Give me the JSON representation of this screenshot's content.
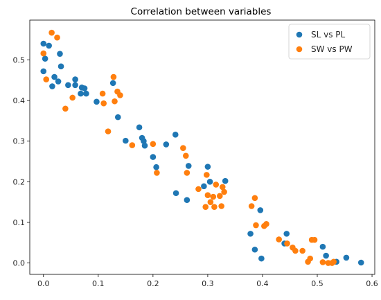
{
  "chart_data": {
    "type": "scatter",
    "title": "Correlation between variables",
    "xlabel": "",
    "ylabel": "",
    "xlim": [
      -0.025,
      0.605
    ],
    "ylim": [
      -0.028,
      0.598
    ],
    "x_ticks": [
      0.0,
      0.1,
      0.2,
      0.3,
      0.4,
      0.5,
      0.6
    ],
    "x_tick_labels": [
      "0.0",
      "0.1",
      "0.2",
      "0.3",
      "0.4",
      "0.5",
      "0.6"
    ],
    "y_ticks": [
      0.0,
      0.1,
      0.2,
      0.3,
      0.4,
      0.5
    ],
    "y_tick_labels": [
      "0.0",
      "0.1",
      "0.2",
      "0.3",
      "0.4",
      "0.5"
    ],
    "grid": false,
    "legend_position": "top-right",
    "series": [
      {
        "name": "SL vs PL",
        "color": "#1f77b4",
        "points": [
          [
            0.0,
            0.54
          ],
          [
            0.003,
            0.503
          ],
          [
            0.0,
            0.472
          ],
          [
            0.01,
            0.535
          ],
          [
            0.03,
            0.515
          ],
          [
            0.032,
            0.484
          ],
          [
            0.02,
            0.458
          ],
          [
            0.016,
            0.435
          ],
          [
            0.027,
            0.447
          ],
          [
            0.045,
            0.438
          ],
          [
            0.058,
            0.452
          ],
          [
            0.058,
            0.438
          ],
          [
            0.07,
            0.432
          ],
          [
            0.075,
            0.43
          ],
          [
            0.068,
            0.417
          ],
          [
            0.078,
            0.417
          ],
          [
            0.097,
            0.397
          ],
          [
            0.127,
            0.443
          ],
          [
            0.136,
            0.359
          ],
          [
            0.15,
            0.301
          ],
          [
            0.175,
            0.334
          ],
          [
            0.18,
            0.308
          ],
          [
            0.183,
            0.3
          ],
          [
            0.185,
            0.289
          ],
          [
            0.2,
            0.261
          ],
          [
            0.206,
            0.236
          ],
          [
            0.224,
            0.292
          ],
          [
            0.241,
            0.316
          ],
          [
            0.265,
            0.239
          ],
          [
            0.242,
            0.172
          ],
          [
            0.262,
            0.155
          ],
          [
            0.293,
            0.189
          ],
          [
            0.3,
            0.237
          ],
          [
            0.304,
            0.2
          ],
          [
            0.332,
            0.202
          ],
          [
            0.378,
            0.072
          ],
          [
            0.386,
            0.033
          ],
          [
            0.396,
            0.13
          ],
          [
            0.398,
            0.011
          ],
          [
            0.44,
            0.048
          ],
          [
            0.444,
            0.072
          ],
          [
            0.51,
            0.04
          ],
          [
            0.516,
            0.018
          ],
          [
            0.535,
            0.003
          ],
          [
            0.553,
            0.013
          ],
          [
            0.58,
            0.001
          ]
        ]
      },
      {
        "name": "SW vs PW",
        "color": "#ff7f0e",
        "points": [
          [
            0.0,
            0.516
          ],
          [
            0.005,
            0.452
          ],
          [
            0.015,
            0.567
          ],
          [
            0.025,
            0.555
          ],
          [
            0.04,
            0.38
          ],
          [
            0.053,
            0.407
          ],
          [
            0.108,
            0.417
          ],
          [
            0.11,
            0.393
          ],
          [
            0.118,
            0.324
          ],
          [
            0.128,
            0.458
          ],
          [
            0.13,
            0.398
          ],
          [
            0.135,
            0.422
          ],
          [
            0.14,
            0.413
          ],
          [
            0.162,
            0.29
          ],
          [
            0.2,
            0.293
          ],
          [
            0.207,
            0.222
          ],
          [
            0.255,
            0.283
          ],
          [
            0.26,
            0.264
          ],
          [
            0.262,
            0.222
          ],
          [
            0.283,
            0.182
          ],
          [
            0.296,
            0.138
          ],
          [
            0.298,
            0.217
          ],
          [
            0.3,
            0.167
          ],
          [
            0.305,
            0.15
          ],
          [
            0.31,
            0.163
          ],
          [
            0.312,
            0.138
          ],
          [
            0.315,
            0.193
          ],
          [
            0.322,
            0.165
          ],
          [
            0.325,
            0.14
          ],
          [
            0.327,
            0.187
          ],
          [
            0.33,
            0.175
          ],
          [
            0.38,
            0.14
          ],
          [
            0.386,
            0.16
          ],
          [
            0.388,
            0.093
          ],
          [
            0.403,
            0.091
          ],
          [
            0.407,
            0.096
          ],
          [
            0.43,
            0.058
          ],
          [
            0.445,
            0.048
          ],
          [
            0.455,
            0.038
          ],
          [
            0.46,
            0.03
          ],
          [
            0.473,
            0.03
          ],
          [
            0.483,
            0.003
          ],
          [
            0.487,
            0.011
          ],
          [
            0.49,
            0.057
          ],
          [
            0.495,
            0.057
          ],
          [
            0.51,
            0.002
          ],
          [
            0.52,
            0.0
          ],
          [
            0.527,
            0.0
          ],
          [
            0.53,
            0.003
          ]
        ]
      }
    ]
  }
}
